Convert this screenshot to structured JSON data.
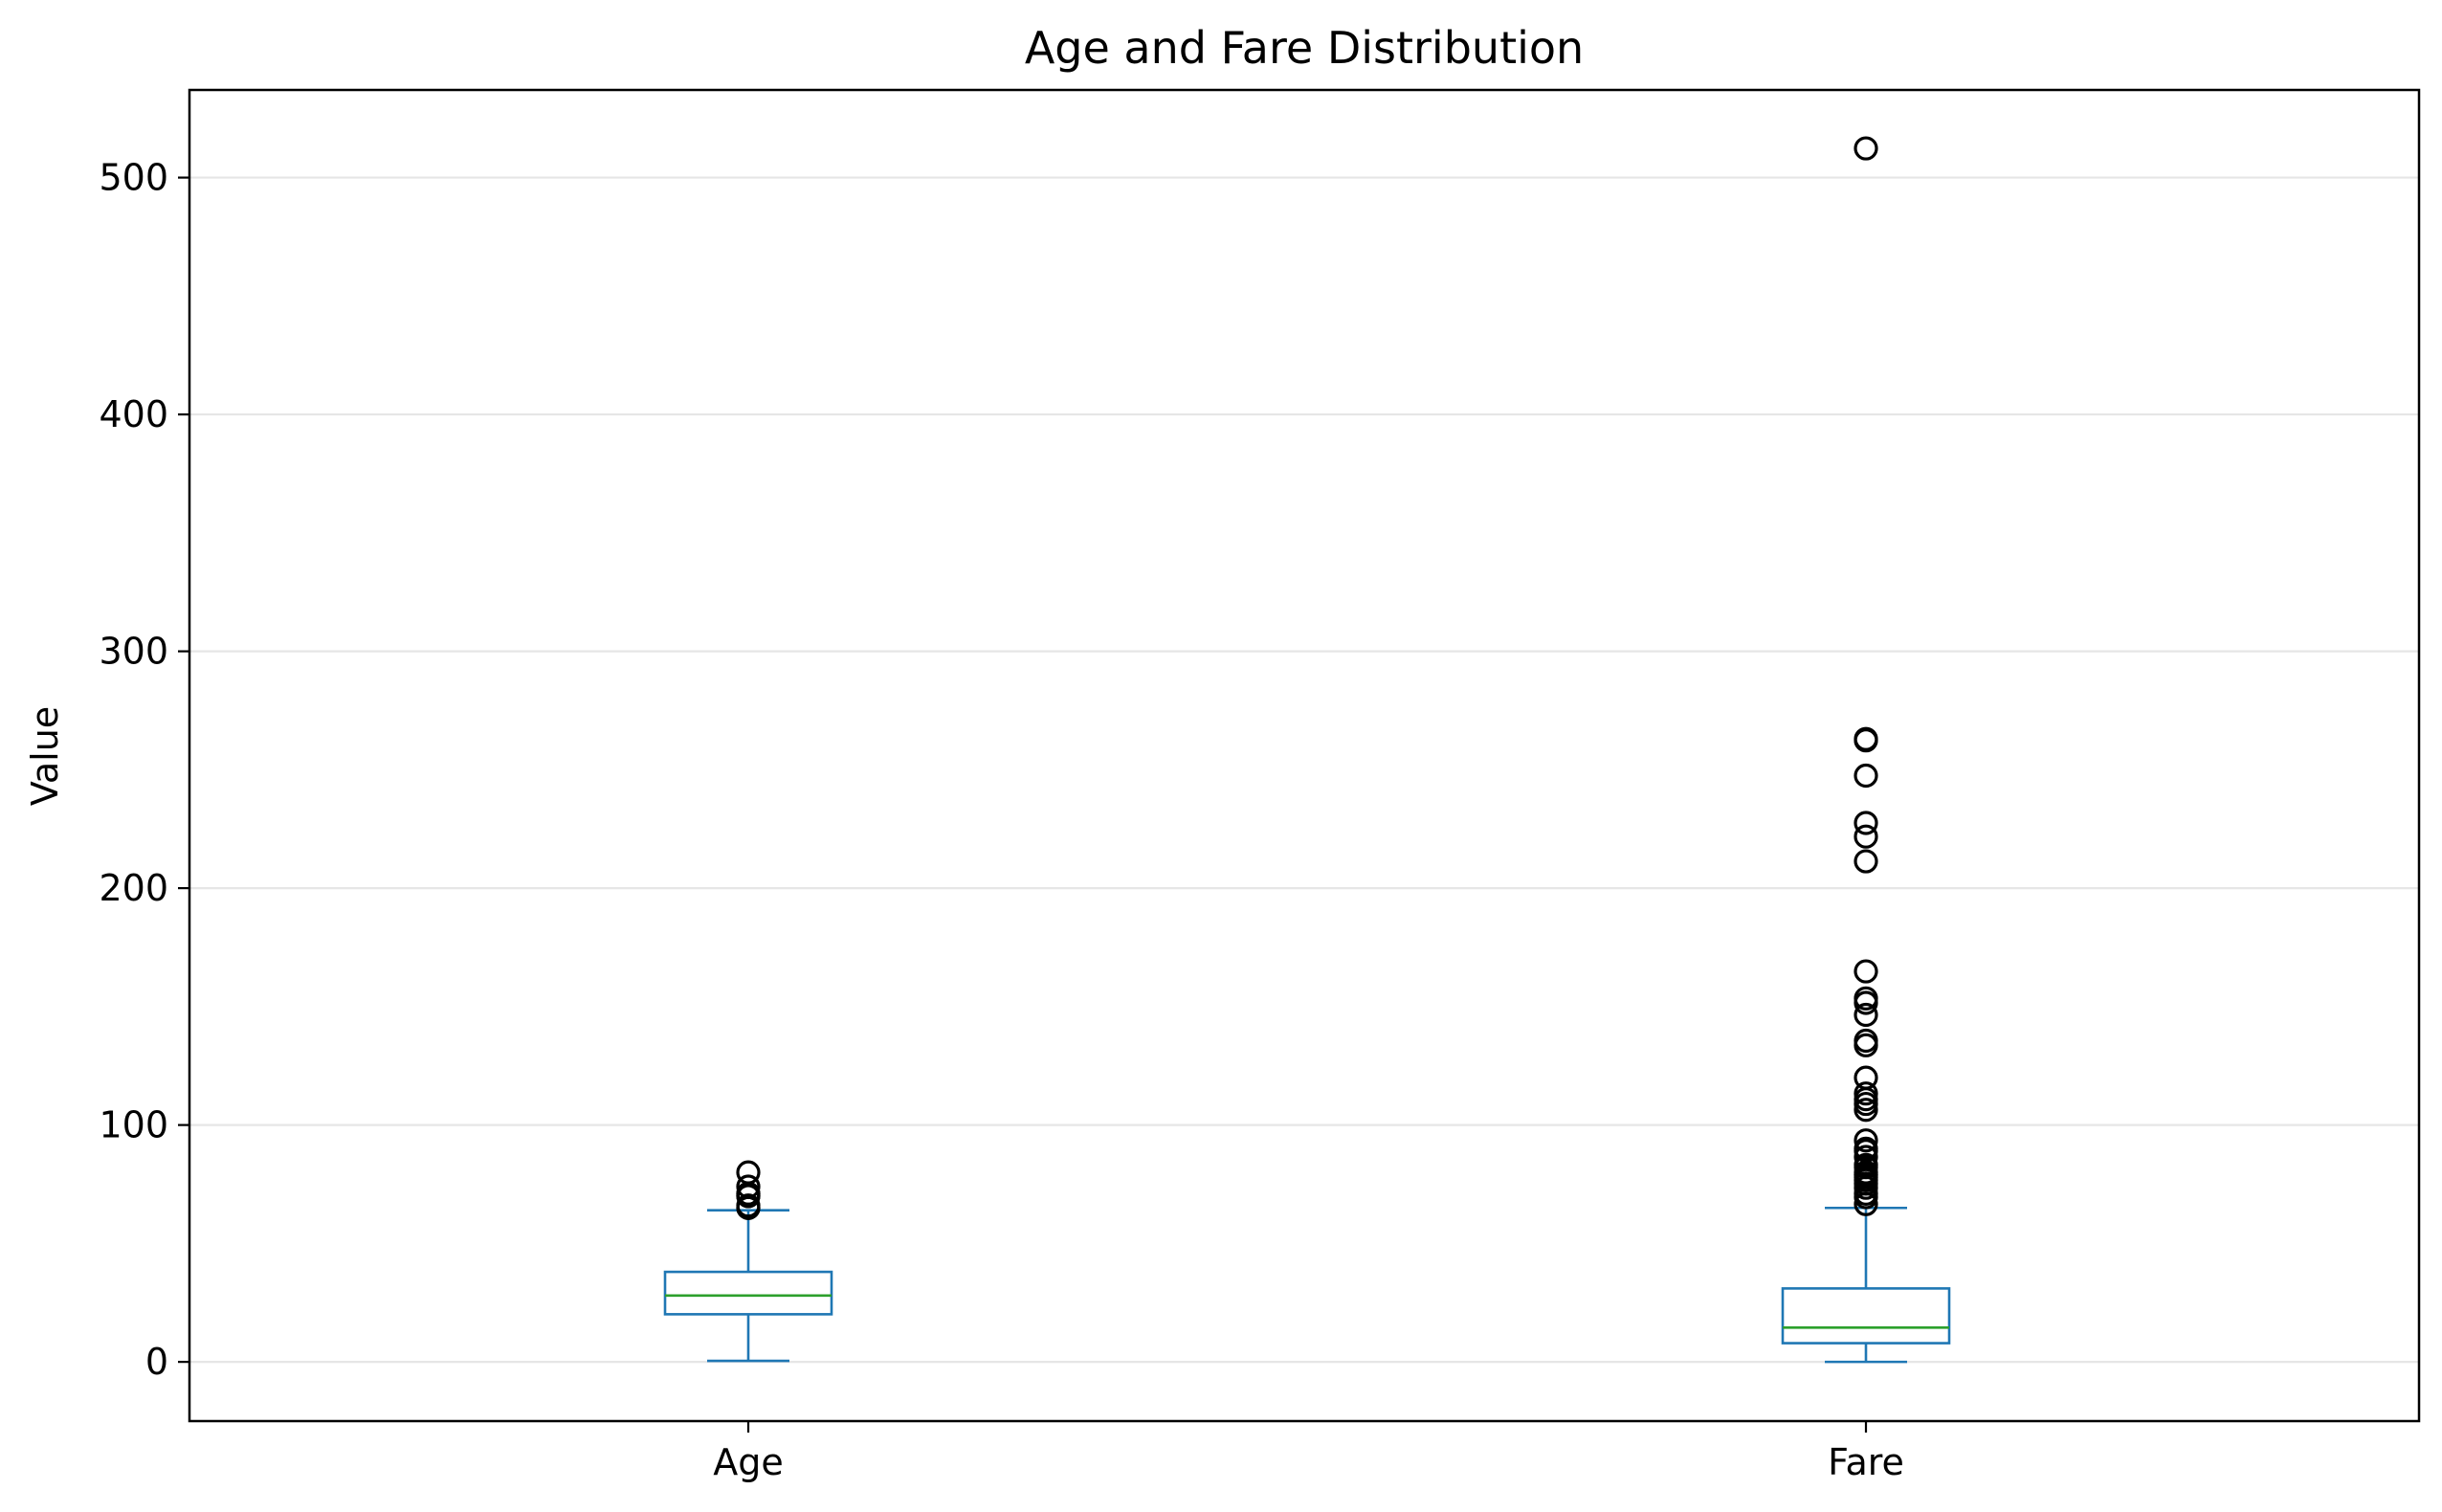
{
  "chart_data": {
    "type": "box",
    "title": "Age and Fare Distribution",
    "xlabel": "",
    "ylabel": "Value",
    "categories": [
      "Age",
      "Fare"
    ],
    "yticks": [
      0,
      100,
      200,
      300,
      400,
      500
    ],
    "ylim": [
      -25,
      537
    ],
    "grid": "y",
    "colors": {
      "box": "#1f77b4",
      "median": "#2ca02c",
      "flier": "#000000",
      "grid": "#e6e6e6",
      "frame": "#000000"
    },
    "series": [
      {
        "category": "Age",
        "whisker_low": 0.42,
        "q1": 20.1,
        "median": 28.0,
        "q3": 38.0,
        "whisker_high": 64.0,
        "outliers": [
          65,
          65,
          66,
          70,
          70,
          70.5,
          71,
          71,
          74,
          80
        ]
      },
      {
        "category": "Fare",
        "whisker_low": 0,
        "q1": 7.9,
        "median": 14.45,
        "q3": 31.0,
        "whisker_high": 65.0,
        "outliers": [
          66.6,
          69.55,
          71.0,
          73.5,
          75.25,
          76.7,
          77.9,
          78.85,
          79.2,
          80.0,
          82.2,
          83.15,
          86.5,
          89.1,
          90.0,
          93.5,
          106.4,
          108.9,
          110.9,
          113.3,
          120.0,
          133.65,
          135.6,
          146.5,
          151.55,
          153.46,
          164.87,
          211.34,
          221.78,
          227.53,
          247.52,
          262.38,
          263.0,
          512.33
        ]
      }
    ]
  }
}
